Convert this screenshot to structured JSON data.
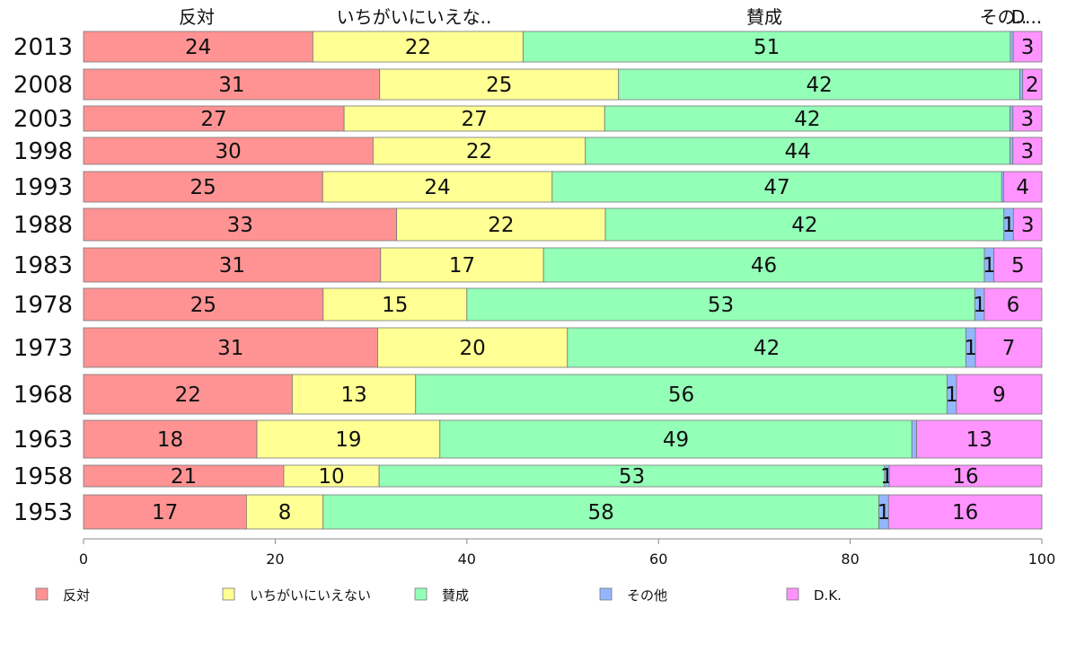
{
  "chart_data": {
    "type": "bar",
    "orientation": "horizontal",
    "stacked": true,
    "percent": true,
    "categories": [
      "2013",
      "2008",
      "2003",
      "1998",
      "1993",
      "1988",
      "1983",
      "1978",
      "1973",
      "1968",
      "1963",
      "1958",
      "1953"
    ],
    "column_headers": [
      "反対",
      "いちがいにいえな..",
      "賛成",
      "その..",
      "D..."
    ],
    "series": [
      {
        "name": "反対",
        "color": "#ff9393",
        "values": [
          24,
          31,
          27,
          30,
          25,
          33,
          31,
          25,
          31,
          22,
          18,
          21,
          17
        ]
      },
      {
        "name": "いちがいにいえない",
        "color": "#ffff93",
        "values": [
          22,
          25,
          27,
          22,
          24,
          22,
          17,
          15,
          20,
          13,
          19,
          10,
          8
        ]
      },
      {
        "name": "賛成",
        "color": "#93ffb7",
        "values": [
          51,
          42,
          42,
          44,
          47,
          42,
          46,
          53,
          42,
          56,
          49,
          53,
          58
        ]
      },
      {
        "name": "その他",
        "color": "#93b7ff",
        "values": [
          0.3,
          0.3,
          0.3,
          0.3,
          0.2,
          1,
          1,
          1,
          1,
          1,
          0.5,
          0.5,
          1
        ]
      },
      {
        "name": "D.K.",
        "color": "#ff93ff",
        "values": [
          3,
          2,
          3,
          3,
          4,
          3,
          5,
          6,
          7,
          9,
          13,
          16,
          16
        ]
      }
    ],
    "value_labels": [
      [
        "24",
        "22",
        "51",
        "",
        "3"
      ],
      [
        "31",
        "25",
        "42",
        "",
        "2"
      ],
      [
        "27",
        "27",
        "42",
        "",
        "3"
      ],
      [
        "30",
        "22",
        "44",
        "",
        "3"
      ],
      [
        "25",
        "24",
        "47",
        "",
        "4"
      ],
      [
        "33",
        "22",
        "42",
        "1",
        "3"
      ],
      [
        "31",
        "17",
        "46",
        "1",
        "5"
      ],
      [
        "25",
        "15",
        "53",
        "1",
        "6"
      ],
      [
        "31",
        "20",
        "42",
        "1",
        "7"
      ],
      [
        "22",
        "13",
        "56",
        "1",
        "9"
      ],
      [
        "18",
        "19",
        "49",
        "",
        "13"
      ],
      [
        "21",
        "10",
        "53",
        "1",
        "16"
      ],
      [
        "17",
        "8",
        "58",
        "1",
        "16"
      ]
    ],
    "xlim": [
      0,
      100
    ],
    "xticks": [
      "0",
      "20",
      "40",
      "60",
      "80",
      "100"
    ],
    "legend_position": "bottom",
    "grid": false
  }
}
